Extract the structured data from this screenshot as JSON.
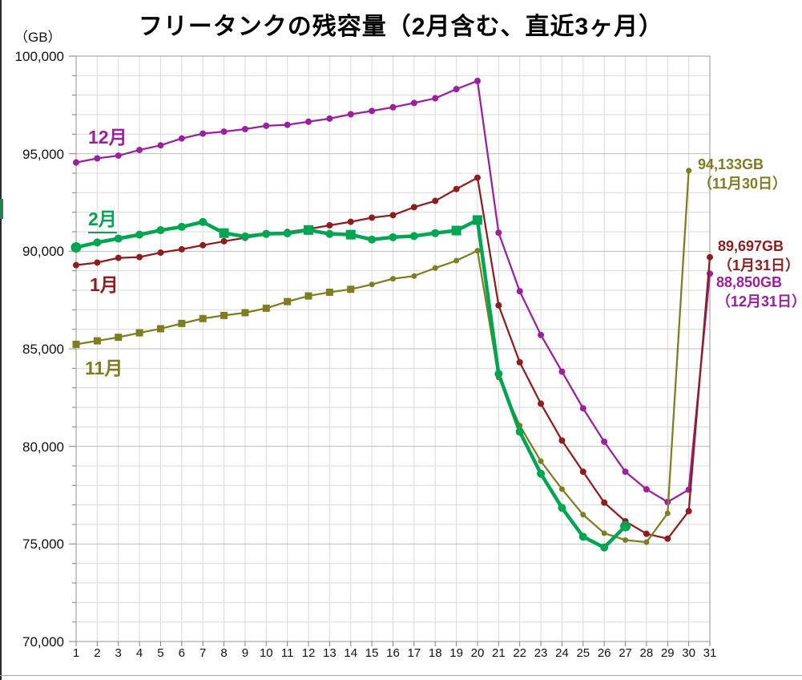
{
  "chart_data": {
    "type": "line",
    "title": "フリータンクの残容量（2月含む、直近3ヶ月）",
    "unit_label": "（GB）",
    "xlabel": "",
    "ylabel": "GB",
    "ylim": [
      70000,
      100000
    ],
    "y_grid_step": 1000,
    "y_major_step": 5000,
    "y_tick_labels": [
      "100,000",
      "95,000",
      "90,000",
      "85,000",
      "80,000",
      "75,000",
      "70,000"
    ],
    "days": [
      1,
      2,
      3,
      4,
      5,
      6,
      7,
      8,
      9,
      10,
      11,
      12,
      13,
      14,
      15,
      16,
      17,
      18,
      19,
      20,
      21,
      22,
      23,
      24,
      25,
      26,
      27,
      28,
      29,
      30,
      31
    ],
    "legend_position": "labels-on-chart",
    "grid": true,
    "series": [
      {
        "name": "12月",
        "color": "#9B1F9F",
        "line_width": 2.25,
        "marker": "circle",
        "marker_r": 4,
        "square_days": [],
        "values": [
          94550,
          94760,
          94900,
          95190,
          95430,
          95780,
          96030,
          96130,
          96260,
          96430,
          96480,
          96640,
          96800,
          97020,
          97190,
          97380,
          97600,
          97840,
          98310,
          98730,
          90950,
          87950,
          85710,
          83830,
          81950,
          80240,
          78700,
          77800,
          77150,
          77780,
          88850
        ]
      },
      {
        "name": "1月",
        "color": "#8F1D1D",
        "line_width": 2.25,
        "marker": "circle",
        "marker_r": 4,
        "square_days": [],
        "values": [
          89290,
          89420,
          89660,
          89700,
          89930,
          90100,
          90310,
          90510,
          90690,
          90850,
          90990,
          91140,
          91330,
          91510,
          91720,
          91850,
          92260,
          92580,
          93190,
          93770,
          87230,
          84310,
          82190,
          80300,
          78700,
          77120,
          76160,
          75520,
          75270,
          76680,
          89697
        ]
      },
      {
        "name": "11月",
        "color": "#7E7D1F",
        "line_width": 2.25,
        "marker": "circle",
        "marker_r": 3.5,
        "square_days": [
          1,
          2,
          3,
          4,
          5,
          6,
          7,
          8,
          9,
          10,
          11,
          12,
          13,
          14
        ],
        "square_size": 9,
        "values": [
          85230,
          85410,
          85590,
          85820,
          86030,
          86300,
          86550,
          86710,
          86850,
          87080,
          87420,
          87710,
          87900,
          88050,
          88300,
          88590,
          88730,
          89140,
          89520,
          90030,
          83530,
          81070,
          79240,
          77810,
          76500,
          75550,
          75200,
          75090,
          76570,
          94133,
          null
        ]
      },
      {
        "name": "2月",
        "color": "#00A651",
        "line_width": 4.5,
        "marker": "circle",
        "marker_r": 5,
        "square_days": [
          8,
          12,
          14,
          19,
          20
        ],
        "square_size": 12,
        "big_days": [
          1,
          27
        ],
        "big_r": 6.5,
        "values": [
          90200,
          90450,
          90650,
          90850,
          91080,
          91250,
          91500,
          90930,
          90760,
          90890,
          90920,
          91090,
          90890,
          90850,
          90600,
          90720,
          90780,
          90930,
          91060,
          91600,
          83720,
          80750,
          78600,
          76850,
          75370,
          74820,
          75910,
          null,
          null,
          null,
          null
        ]
      }
    ],
    "annotations": [
      {
        "value_text": "94,133GB",
        "date_text": "（11月30日）",
        "color": "#7E7D1F",
        "series": "11月",
        "day": 30
      },
      {
        "value_text": "89,697GB",
        "date_text": "（1月31日）",
        "color": "#8F1D1D",
        "series": "1月",
        "day": 31
      },
      {
        "value_text": "88,850GB",
        "date_text": "（12月31日）",
        "color": "#9B1F9F",
        "series": "12月",
        "day": 31
      }
    ]
  }
}
